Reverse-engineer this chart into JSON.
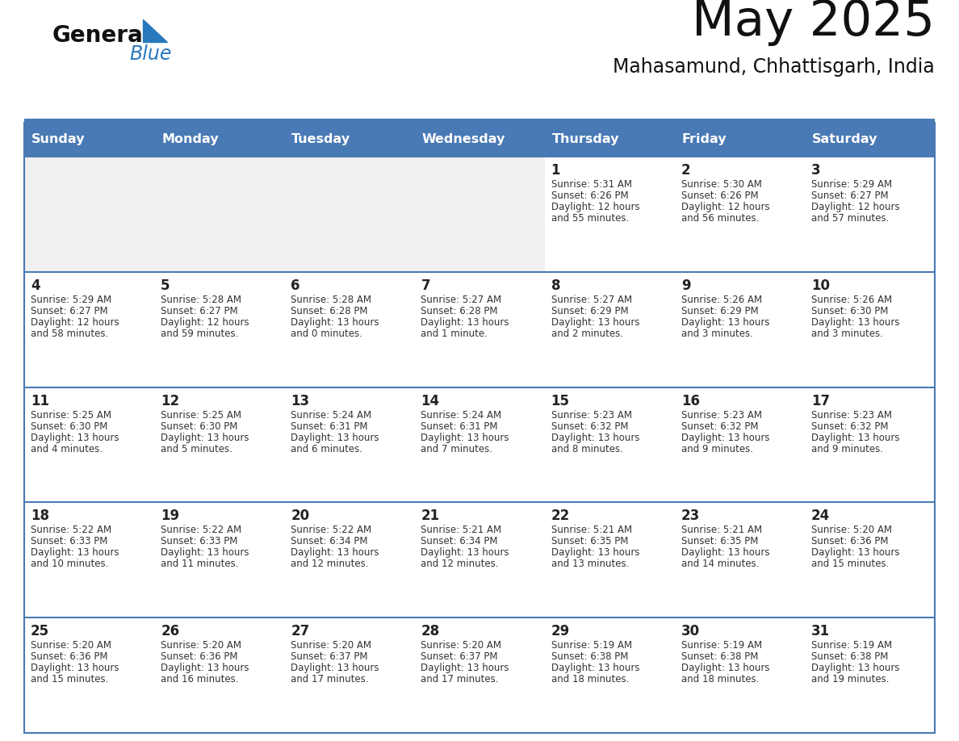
{
  "title": "May 2025",
  "subtitle": "Mahasamund, Chhattisgarh, India",
  "header_bg_color": "#4a7ab5",
  "header_text_color": "#ffffff",
  "day_names": [
    "Sunday",
    "Monday",
    "Tuesday",
    "Wednesday",
    "Thursday",
    "Friday",
    "Saturday"
  ],
  "row_bg_white": "#ffffff",
  "row_bg_gray": "#f0f0f0",
  "cell_border_color": "#4a7ab5",
  "date_color": "#222222",
  "info_color": "#333333",
  "title_color": "#111111",
  "subtitle_color": "#111111",
  "generalblue_black": "#111111",
  "generalblue_blue": "#2878be",
  "weeks": [
    [
      {
        "day": null,
        "info": ""
      },
      {
        "day": null,
        "info": ""
      },
      {
        "day": null,
        "info": ""
      },
      {
        "day": null,
        "info": ""
      },
      {
        "day": 1,
        "info": "Sunrise: 5:31 AM\nSunset: 6:26 PM\nDaylight: 12 hours\nand 55 minutes."
      },
      {
        "day": 2,
        "info": "Sunrise: 5:30 AM\nSunset: 6:26 PM\nDaylight: 12 hours\nand 56 minutes."
      },
      {
        "day": 3,
        "info": "Sunrise: 5:29 AM\nSunset: 6:27 PM\nDaylight: 12 hours\nand 57 minutes."
      }
    ],
    [
      {
        "day": 4,
        "info": "Sunrise: 5:29 AM\nSunset: 6:27 PM\nDaylight: 12 hours\nand 58 minutes."
      },
      {
        "day": 5,
        "info": "Sunrise: 5:28 AM\nSunset: 6:27 PM\nDaylight: 12 hours\nand 59 minutes."
      },
      {
        "day": 6,
        "info": "Sunrise: 5:28 AM\nSunset: 6:28 PM\nDaylight: 13 hours\nand 0 minutes."
      },
      {
        "day": 7,
        "info": "Sunrise: 5:27 AM\nSunset: 6:28 PM\nDaylight: 13 hours\nand 1 minute."
      },
      {
        "day": 8,
        "info": "Sunrise: 5:27 AM\nSunset: 6:29 PM\nDaylight: 13 hours\nand 2 minutes."
      },
      {
        "day": 9,
        "info": "Sunrise: 5:26 AM\nSunset: 6:29 PM\nDaylight: 13 hours\nand 3 minutes."
      },
      {
        "day": 10,
        "info": "Sunrise: 5:26 AM\nSunset: 6:30 PM\nDaylight: 13 hours\nand 3 minutes."
      }
    ],
    [
      {
        "day": 11,
        "info": "Sunrise: 5:25 AM\nSunset: 6:30 PM\nDaylight: 13 hours\nand 4 minutes."
      },
      {
        "day": 12,
        "info": "Sunrise: 5:25 AM\nSunset: 6:30 PM\nDaylight: 13 hours\nand 5 minutes."
      },
      {
        "day": 13,
        "info": "Sunrise: 5:24 AM\nSunset: 6:31 PM\nDaylight: 13 hours\nand 6 minutes."
      },
      {
        "day": 14,
        "info": "Sunrise: 5:24 AM\nSunset: 6:31 PM\nDaylight: 13 hours\nand 7 minutes."
      },
      {
        "day": 15,
        "info": "Sunrise: 5:23 AM\nSunset: 6:32 PM\nDaylight: 13 hours\nand 8 minutes."
      },
      {
        "day": 16,
        "info": "Sunrise: 5:23 AM\nSunset: 6:32 PM\nDaylight: 13 hours\nand 9 minutes."
      },
      {
        "day": 17,
        "info": "Sunrise: 5:23 AM\nSunset: 6:32 PM\nDaylight: 13 hours\nand 9 minutes."
      }
    ],
    [
      {
        "day": 18,
        "info": "Sunrise: 5:22 AM\nSunset: 6:33 PM\nDaylight: 13 hours\nand 10 minutes."
      },
      {
        "day": 19,
        "info": "Sunrise: 5:22 AM\nSunset: 6:33 PM\nDaylight: 13 hours\nand 11 minutes."
      },
      {
        "day": 20,
        "info": "Sunrise: 5:22 AM\nSunset: 6:34 PM\nDaylight: 13 hours\nand 12 minutes."
      },
      {
        "day": 21,
        "info": "Sunrise: 5:21 AM\nSunset: 6:34 PM\nDaylight: 13 hours\nand 12 minutes."
      },
      {
        "day": 22,
        "info": "Sunrise: 5:21 AM\nSunset: 6:35 PM\nDaylight: 13 hours\nand 13 minutes."
      },
      {
        "day": 23,
        "info": "Sunrise: 5:21 AM\nSunset: 6:35 PM\nDaylight: 13 hours\nand 14 minutes."
      },
      {
        "day": 24,
        "info": "Sunrise: 5:20 AM\nSunset: 6:36 PM\nDaylight: 13 hours\nand 15 minutes."
      }
    ],
    [
      {
        "day": 25,
        "info": "Sunrise: 5:20 AM\nSunset: 6:36 PM\nDaylight: 13 hours\nand 15 minutes."
      },
      {
        "day": 26,
        "info": "Sunrise: 5:20 AM\nSunset: 6:36 PM\nDaylight: 13 hours\nand 16 minutes."
      },
      {
        "day": 27,
        "info": "Sunrise: 5:20 AM\nSunset: 6:37 PM\nDaylight: 13 hours\nand 17 minutes."
      },
      {
        "day": 28,
        "info": "Sunrise: 5:20 AM\nSunset: 6:37 PM\nDaylight: 13 hours\nand 17 minutes."
      },
      {
        "day": 29,
        "info": "Sunrise: 5:19 AM\nSunset: 6:38 PM\nDaylight: 13 hours\nand 18 minutes."
      },
      {
        "day": 30,
        "info": "Sunrise: 5:19 AM\nSunset: 6:38 PM\nDaylight: 13 hours\nand 18 minutes."
      },
      {
        "day": 31,
        "info": "Sunrise: 5:19 AM\nSunset: 6:38 PM\nDaylight: 13 hours\nand 19 minutes."
      }
    ]
  ]
}
